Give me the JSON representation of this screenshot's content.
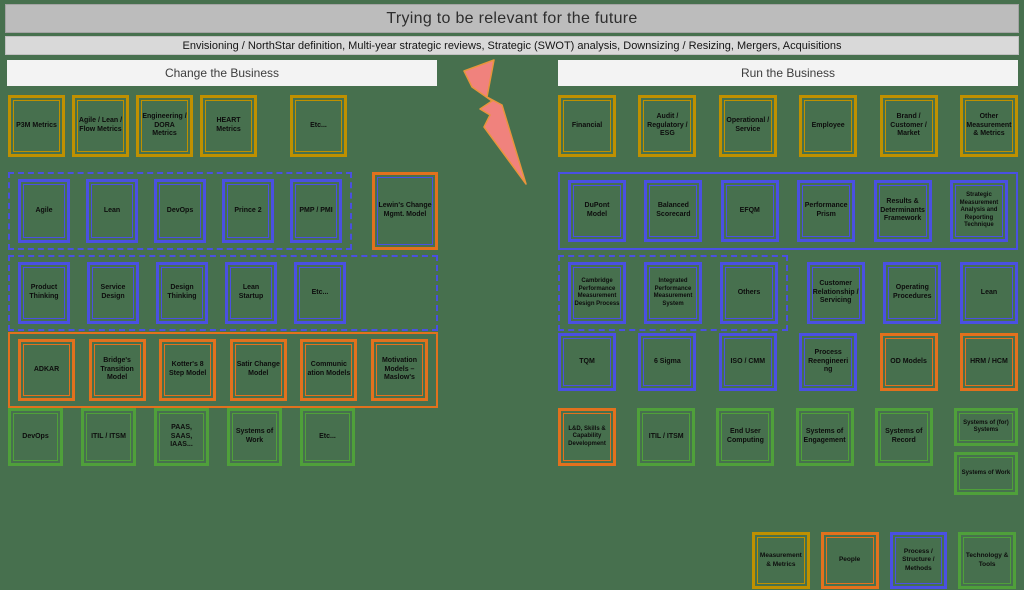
{
  "title": "Trying to be relevant for the future",
  "subtitle": "Envisioning / NorthStar definition, Multi-year strategic reviews, Strategic (SWOT) analysis, Downsizing / Resizing, Mergers, Acquisitions",
  "palette": {
    "canvas": "#47704e",
    "gold": "#bf9000",
    "orange": "#e2711d",
    "blue": "#4a50e2",
    "green": "#4fa03a",
    "bolt_fill": "#f0827d",
    "bolt_stroke": "#e8953c",
    "title_bar": "#bcbcbc",
    "subtitle_bar": "#d9d9d9",
    "header_bar": "#f3f3f3"
  },
  "sections": {
    "left": {
      "header": "Change the Business",
      "rows": [
        {
          "items": [
            {
              "type": "box",
              "color": "gold",
              "label": "P3M Metrics"
            },
            {
              "type": "box",
              "color": "gold",
              "label": "Agile / Lean / Flow Metrics"
            },
            {
              "type": "box",
              "color": "gold",
              "label": "Engineering / DORA Metrics"
            },
            {
              "type": "box",
              "color": "gold",
              "label": "HEART Metrics"
            },
            {
              "type": "box",
              "color": "gold",
              "label": "Etc..."
            }
          ]
        },
        {
          "items": [
            {
              "type": "group",
              "style": "dashed",
              "color": "blue",
              "boxes": [
                {
                  "color": "blue",
                  "label": "Agile"
                },
                {
                  "color": "blue",
                  "label": "Lean"
                },
                {
                  "color": "blue",
                  "label": "DevOps"
                },
                {
                  "color": "blue",
                  "label": "Prince 2"
                },
                {
                  "color": "blue",
                  "label": "PMP / PMI"
                }
              ]
            },
            {
              "type": "box",
              "color": "orange",
              "inner": "blue",
              "label": "Lewin's Change Mgmt. Model"
            }
          ]
        },
        {
          "items": [
            {
              "type": "group",
              "style": "dashed",
              "color": "blue",
              "boxes": [
                {
                  "color": "blue",
                  "label": "Product Thinking"
                },
                {
                  "color": "blue",
                  "label": "Service Design"
                },
                {
                  "color": "blue",
                  "label": "Design Thinking"
                },
                {
                  "color": "blue",
                  "label": "Lean Startup"
                },
                {
                  "color": "blue",
                  "label": "Etc..."
                }
              ]
            }
          ]
        },
        {
          "items": [
            {
              "type": "group",
              "style": "solid",
              "color": "orange",
              "boxes": [
                {
                  "color": "orange",
                  "label": "ADKAR"
                },
                {
                  "color": "orange",
                  "label": "Bridge's Transition Model"
                },
                {
                  "color": "orange",
                  "label": "Kotter's 8 Step Model"
                },
                {
                  "color": "orange",
                  "label": "Satir Change Model"
                },
                {
                  "color": "orange",
                  "label": "Communic ation Models"
                },
                {
                  "color": "orange",
                  "label": "Motivation Models – Maslow's"
                }
              ]
            }
          ]
        },
        {
          "items": [
            {
              "type": "box",
              "color": "green",
              "label": "DevOps"
            },
            {
              "type": "box",
              "color": "green",
              "label": "ITIL / ITSM"
            },
            {
              "type": "box",
              "color": "green",
              "label": "PAAS, SAAS, IAAS..."
            },
            {
              "type": "box",
              "color": "green",
              "label": "Systems of Work"
            },
            {
              "type": "box",
              "color": "green",
              "label": "Etc..."
            }
          ]
        }
      ]
    },
    "right": {
      "header": "Run the Business",
      "rows": [
        {
          "items": [
            {
              "type": "box",
              "color": "gold",
              "label": "Financial"
            },
            {
              "type": "box",
              "color": "gold",
              "label": "Audit / Regulatory / ESG"
            },
            {
              "type": "box",
              "color": "gold",
              "label": "Operational / Service"
            },
            {
              "type": "box",
              "color": "gold",
              "label": "Employee"
            },
            {
              "type": "box",
              "color": "gold",
              "label": "Brand / Customer / Market"
            },
            {
              "type": "box",
              "color": "gold",
              "label": "Other Measurement & Metrics"
            }
          ]
        },
        {
          "items": [
            {
              "type": "group",
              "style": "solid",
              "color": "blue",
              "boxes": [
                {
                  "color": "blue",
                  "label": "DuPont Model"
                },
                {
                  "color": "blue",
                  "label": "Balanced Scorecard"
                },
                {
                  "color": "blue",
                  "label": "EFQM"
                },
                {
                  "color": "blue",
                  "label": "Performance Prism"
                },
                {
                  "color": "blue",
                  "label": "Results & Determinants Framework"
                },
                {
                  "color": "blue",
                  "label": "Strategic Measurement Analysis and Reporting Technique"
                }
              ]
            }
          ]
        },
        {
          "items": [
            {
              "type": "group",
              "style": "dashed",
              "color": "blue",
              "boxes": [
                {
                  "color": "blue",
                  "label": "Cambridge Performance Measurement Design Process"
                },
                {
                  "color": "blue",
                  "label": "Integrated Performance Measurement System"
                },
                {
                  "color": "blue",
                  "label": "Others"
                }
              ]
            },
            {
              "type": "box",
              "color": "blue",
              "label": "Customer Relationship / Servicing"
            },
            {
              "type": "box",
              "color": "blue",
              "label": "Operating Procedures"
            },
            {
              "type": "box",
              "color": "blue",
              "label": "Lean"
            }
          ]
        },
        {
          "items": [
            {
              "type": "box",
              "color": "blue",
              "label": "TQM"
            },
            {
              "type": "box",
              "color": "blue",
              "label": "6 Sigma"
            },
            {
              "type": "box",
              "color": "blue",
              "label": "ISO / CMM"
            },
            {
              "type": "box",
              "color": "blue",
              "label": "Process Reengineeri ng"
            },
            {
              "type": "box",
              "color": "orange",
              "label": "OD Models"
            },
            {
              "type": "box",
              "color": "orange",
              "label": "HRM / HCM"
            }
          ]
        },
        {
          "items": [
            {
              "type": "box",
              "color": "orange",
              "label": "L&D, Skills & Capability Development"
            },
            {
              "type": "box",
              "color": "green",
              "label": "ITIL / ITSM"
            },
            {
              "type": "box",
              "color": "green",
              "label": "End User Computing"
            },
            {
              "type": "box",
              "color": "green",
              "label": "Systems of Engagement"
            },
            {
              "type": "box",
              "color": "green",
              "label": "Systems of Record"
            },
            {
              "type": "stack",
              "boxes": [
                {
                  "color": "green",
                  "label": "Systems of (for) Systems"
                },
                {
                  "color": "green",
                  "label": "Systems of Work"
                }
              ]
            }
          ]
        }
      ]
    }
  },
  "legend": {
    "items": [
      {
        "color": "gold",
        "label": "Measurement & Metrics"
      },
      {
        "color": "orange",
        "label": "People"
      },
      {
        "color": "blue",
        "label": "Process / Structure / Methods"
      },
      {
        "color": "green",
        "label": "Technology & Tools"
      }
    ]
  }
}
